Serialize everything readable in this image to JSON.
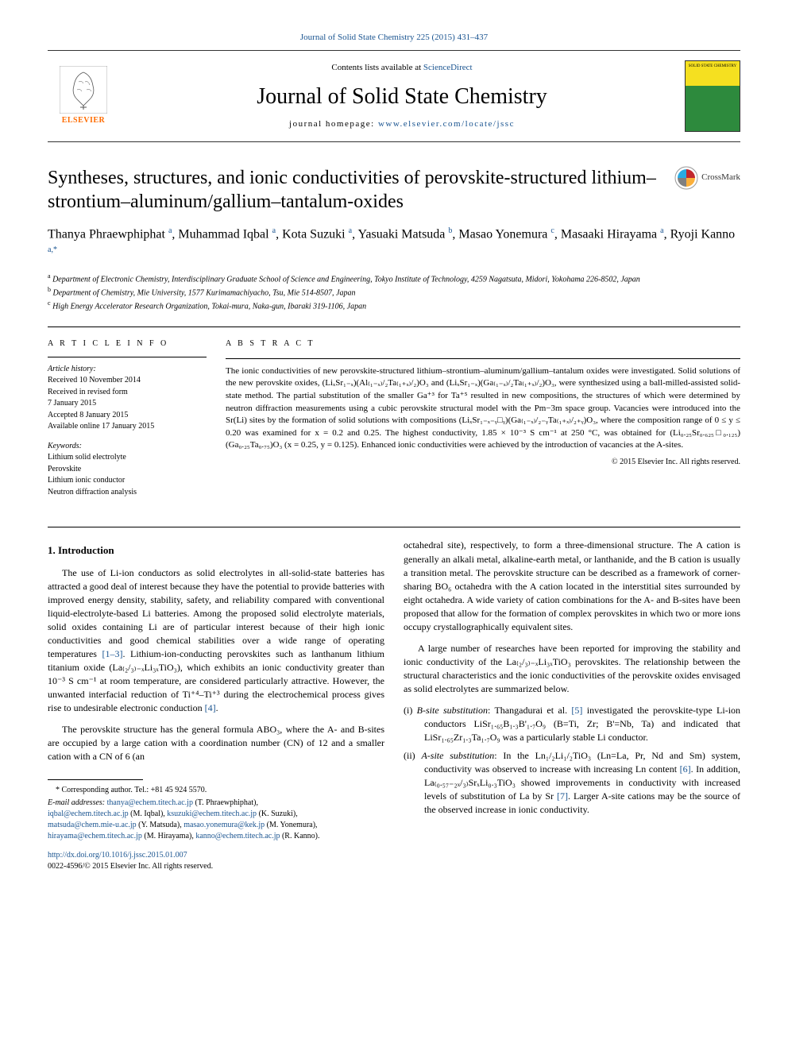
{
  "header": {
    "top_link_text": "Journal of Solid State Chemistry 225 (2015) 431–437",
    "contents_text_prefix": "Contents lists available at ",
    "contents_link": "ScienceDirect",
    "journal_name": "Journal of Solid State Chemistry",
    "homepage_prefix": "journal homepage: ",
    "homepage_link": "www.elsevier.com/locate/jssc",
    "elsevier_label": "ELSEVIER",
    "cover_label": "SOLID STATE CHEMISTRY",
    "crossmark_label": "CrossMark"
  },
  "article": {
    "title": "Syntheses, structures, and ionic conductivities of perovskite-structured lithium–strontium–aluminum/gallium–tantalum-oxides",
    "authors_html": "Thanya Phraewphiphat <sup>a</sup>, Muhammad Iqbal <sup>a</sup>, Kota Suzuki <sup>a</sup>, Yasuaki Matsuda <sup>b</sup>, Masao Yonemura <sup>c</sup>, Masaaki Hirayama <sup>a</sup>, Ryoji Kanno <sup>a,*</sup>",
    "affiliations": [
      "a Department of Electronic Chemistry, Interdisciplinary Graduate School of Science and Engineering, Tokyo Institute of Technology, 4259 Nagatsuta, Midori, Yokohama 226-8502, Japan",
      "b Department of Chemistry, Mie University, 1577 Kurimamachiyacho, Tsu, Mie 514-8507, Japan",
      "c High Energy Accelerator Research Organization, Tokai-mura, Naka-gun, Ibaraki 319-1106, Japan"
    ]
  },
  "info": {
    "heading": "A R T I C L E  I N F O",
    "history_label": "Article history:",
    "history_lines": [
      "Received 10 November 2014",
      "Received in revised form",
      "7 January 2015",
      "Accepted 8 January 2015",
      "Available online 17 January 2015"
    ],
    "keywords_label": "Keywords:",
    "keywords": [
      "Lithium solid electrolyte",
      "Perovskite",
      "Lithium ionic conductor",
      "Neutron diffraction analysis"
    ]
  },
  "abstract": {
    "heading": "A B S T R A C T",
    "text": "The ionic conductivities of new perovskite-structured lithium–strontium–aluminum/gallium–tantalum oxides were investigated. Solid solutions of the new perovskite oxides, (LiₓSr₁₋ₓ)(Al₍₁₋ₓ₎/₂Ta₍₁₊ₓ₎/₂)O₃ and (LiₓSr₁₋ₓ)(Ga₍₁₋ₓ₎/₂Ta₍₁₊ₓ₎/₂)O₃, were synthesized using a ball-milled-assisted solid-state method. The partial substitution of the smaller Ga⁺³ for Ta⁺⁵ resulted in new compositions, the structures of which were determined by neutron diffraction measurements using a cubic perovskite structural model with the Pm−3m space group. Vacancies were introduced into the Sr(Li) sites by the formation of solid solutions with compositions (LiₓSr₁₋ₓ₋ᵧ□ᵧ)(Ga₍₁₋ₓ₎/₂₋ᵧTa₍₁₊ₓ₎/₂₊ᵧ)O₃, where the composition range of 0 ≤ y ≤ 0.20 was examined for x = 0.2 and 0.25. The highest conductivity, 1.85 × 10⁻³ S cm⁻¹ at 250 °C, was obtained for (Li₀.₂₅Sr₀.₆₂₅□₀.₁₂₅)(Ga₀.₂₅Ta₀.₇₅)O₃ (x = 0.25, y = 0.125). Enhanced ionic conductivities were achieved by the introduction of vacancies at the A-sites.",
    "copyright": "© 2015 Elsevier Inc. All rights reserved."
  },
  "body": {
    "intro_heading": "1.  Introduction",
    "p1": "The use of Li-ion conductors as solid electrolytes in all-solid-state batteries has attracted a good deal of interest because they have the potential to provide batteries with improved energy density, stability, safety, and reliability compared with conventional liquid-electrolyte-based Li batteries. Among the proposed solid electrolyte materials, solid oxides containing Li are of particular interest because of their high ionic conductivities and good chemical stabilities over a wide range of operating temperatures ",
    "p1_ref": "[1–3]",
    "p1b": ". Lithium-ion-conducting perovskites such as lanthanum lithium titanium oxide (La₍₂/₃₎₋ₓLi₃ₓTiO₃), which exhibits an ionic conductivity greater than 10⁻³ S cm⁻¹ at room temperature, are considered particularly attractive. However, the unwanted interfacial reduction of Ti⁺⁴–Ti⁺³ during the electrochemical process gives rise to undesirable electronic conduction ",
    "p1_ref2": "[4]",
    "p2": "The perovskite structure has the general formula ABO₃, where the A- and B-sites are occupied by a large cation with a coordination number (CN) of 12 and a smaller cation with a CN of 6 (an",
    "p3": "octahedral site), respectively, to form a three-dimensional structure. The A cation is generally an alkali metal, alkaline-earth metal, or lanthanide, and the B cation is usually a transition metal. The perovskite structure can be described as a framework of corner-sharing BO₆ octahedra with the A cation located in the interstitial sites surrounded by eight octahedra. A wide variety of cation combinations for the A- and B-sites have been proposed that allow for the formation of complex perovskites in which two or more ions occupy crystallographically equivalent sites.",
    "p4": "A large number of researches have been reported for improving the stability and ionic conductivity of the La₍₂/₃₎₋ₓLi₃ₓTiO₃ perovskites. The relationship between the structural characteristics and the ionic conductivities of the perovskite oxides envisaged as solid electrolytes are summarized below.",
    "li1_label": "(i) ",
    "li1_em": "B-site substitution",
    "li1": ": Thangadurai et al. ",
    "li1_ref": "[5]",
    "li1b": " investigated the perovskite-type Li-ion conductors LiSr₁.₆₅B₁.₃B'₁.₇O₉ (B=Ti, Zr; B'=Nb, Ta) and indicated that LiSr₁.₆₅Zr₁.₃Ta₁.₇O₉ was a particularly stable Li conductor.",
    "li2_label": "(ii) ",
    "li2_em": "A-site substitution",
    "li2": ": In the Ln₁/₂Li₁/₂TiO₃ (Ln=La, Pr, Nd and Sm) system, conductivity was observed to increase with increasing Ln content ",
    "li2_ref": "[6]",
    "li2b": ". In addition, La₍₀.₅₇₋₂ₓ/₃₎SrₓLi₀.₃TiO₃ showed improvements in conductivity with increased levels of substitution of La by Sr ",
    "li2_ref2": "[7]",
    "li2c": ". Larger A-site cations may be the source of the observed increase in ionic conductivity."
  },
  "footnotes": {
    "corr": "* Corresponding author. Tel.: +81 45 924 5570.",
    "email_label": "E-mail addresses: ",
    "emails": [
      {
        "addr": "thanya@echem.titech.ac.jp",
        "who": " (T. Phraewphiphat),"
      },
      {
        "addr": "iqbal@echem.titech.ac.jp",
        "who": " (M. Iqbal), "
      },
      {
        "addr": "ksuzuki@echem.titech.ac.jp",
        "who": " (K. Suzuki),"
      },
      {
        "addr": "matsuda@chem.mie-u.ac.jp",
        "who": " (Y. Matsuda), "
      },
      {
        "addr": "masao.yonemura@kek.jp",
        "who": " (M. Yonemura),"
      },
      {
        "addr": "hirayama@echem.titech.ac.jp",
        "who": " (M. Hirayama), "
      },
      {
        "addr": "kanno@echem.titech.ac.jp",
        "who": " (R. Kanno)."
      }
    ],
    "doi": "http://dx.doi.org/10.1016/j.jssc.2015.01.007",
    "issn_line": "0022-4596/© 2015 Elsevier Inc. All rights reserved."
  },
  "colors": {
    "link": "#1a5490",
    "elsevier_orange": "#ff6c00",
    "cover_yellow": "#f5e020",
    "cover_green": "#2d8a3d",
    "crossmark_red": "#c1272d",
    "crossmark_yellow": "#fbb03b",
    "crossmark_blue": "#29abe2",
    "crossmark_grey": "#808080"
  }
}
